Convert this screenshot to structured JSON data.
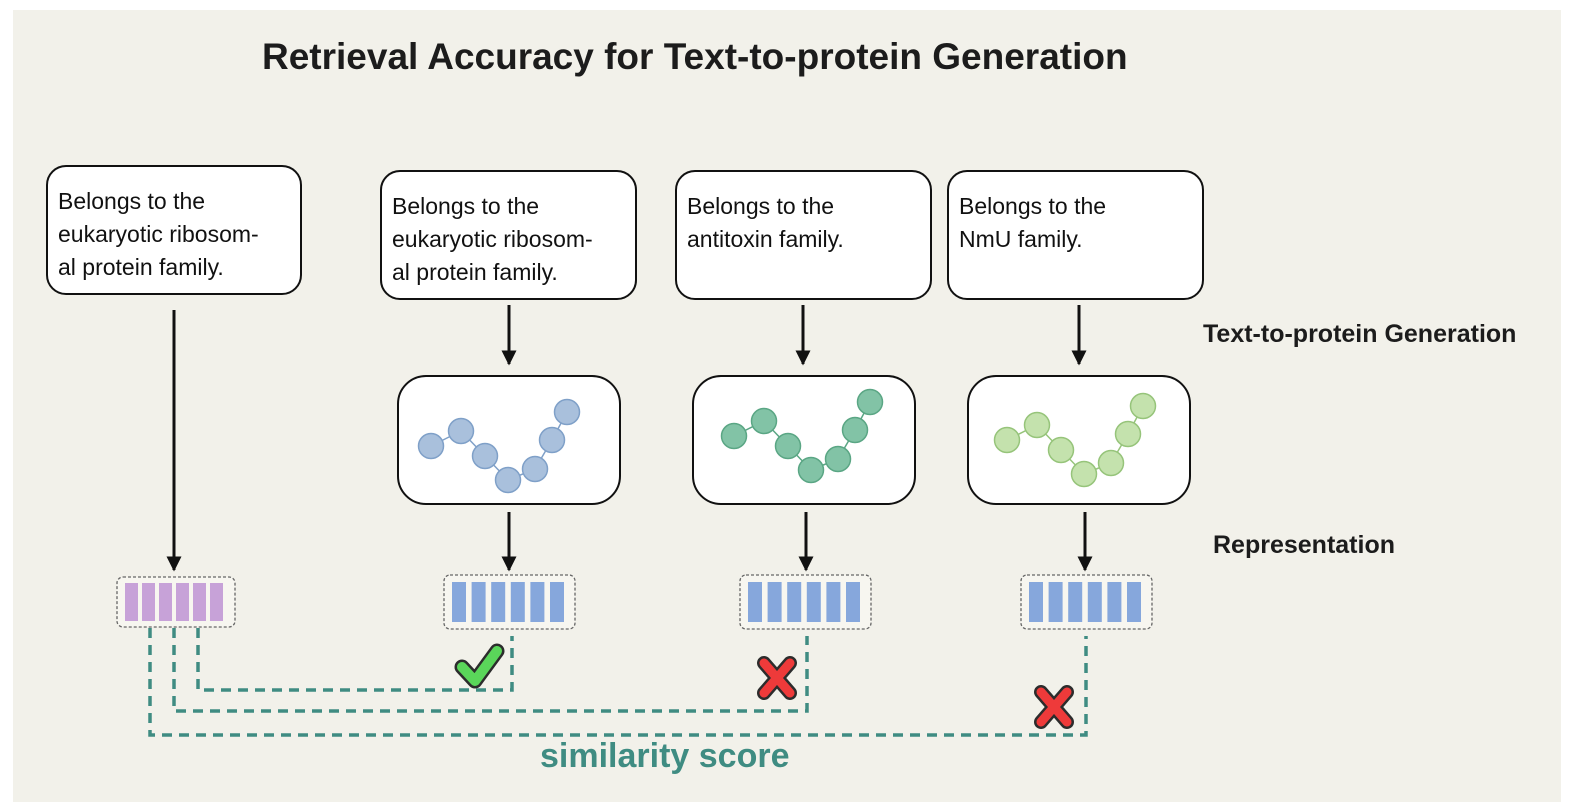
{
  "title": "Retrieval Accuracy for Text-to-protein Generation",
  "stage_labels": {
    "generation": "Text-to-protein Generation",
    "representation": "Representation"
  },
  "similarity_label": "similarity score",
  "query": {
    "lines": [
      "Belongs to the",
      "eukaryotic ribosom-",
      "al protein family."
    ],
    "embedding_color": "#c7a2d8"
  },
  "candidates": [
    {
      "lines": [
        "Belongs to the",
        "eukaryotic ribosom-",
        "al protein family."
      ],
      "protein_color": "#a9c0dc",
      "protein_stroke": "#7fa0c8",
      "result": "match",
      "result_icon": "check-icon"
    },
    {
      "lines": [
        "Belongs to the",
        "antitoxin family."
      ],
      "protein_color": "#82c3a6",
      "protein_stroke": "#5aa684",
      "result": "mismatch",
      "result_icon": "cross-icon"
    },
    {
      "lines": [
        "Belongs to the",
        "NmU family."
      ],
      "protein_color": "#c4e2ad",
      "protein_stroke": "#96c47a",
      "result": "mismatch",
      "result_icon": "cross-icon"
    }
  ],
  "colors": {
    "candidate_embedding": "#86a7dc",
    "dashed_connector": "#3f8c82",
    "check": "#5ad65a",
    "cross": "#ee3a3a"
  }
}
